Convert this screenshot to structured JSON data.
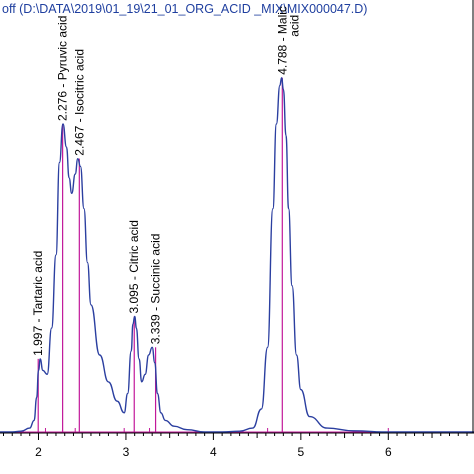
{
  "chart_data": {
    "type": "line",
    "title": "off (D:\\DATA\\2019\\01_19\\21_01_ORG_ACID _MIX\\MIX000047.D)",
    "xlabel": "",
    "ylabel": "",
    "xlim": [
      1.56,
      6.98
    ],
    "ylim": [
      0,
      1.0
    ],
    "x_ticks": [
      2,
      3,
      4,
      5,
      6
    ],
    "x_tick_labels": [
      "2",
      "3",
      "4",
      "5",
      "6"
    ],
    "colors": {
      "trace": "#2b3fa0",
      "baseline": "#c2189a",
      "frame": "#000000"
    },
    "series": [
      {
        "x": [
          1.56,
          1.7,
          1.8,
          1.9,
          1.95,
          1.98,
          2.0,
          2.02,
          2.05,
          2.1,
          2.15,
          2.2,
          2.24,
          2.28,
          2.32,
          2.35,
          2.38,
          2.42,
          2.45,
          2.48,
          2.52,
          2.56,
          2.6,
          2.7,
          2.8,
          2.9,
          2.98,
          3.02,
          3.06,
          3.08,
          3.1,
          3.12,
          3.15,
          3.18,
          3.22,
          3.26,
          3.3,
          3.33,
          3.36,
          3.4,
          3.45,
          3.55,
          3.7,
          3.9,
          4.1,
          4.3,
          4.45,
          4.55,
          4.62,
          4.68,
          4.72,
          4.76,
          4.78,
          4.8,
          4.83,
          4.86,
          4.9,
          4.95,
          5.0,
          5.1,
          5.3,
          5.6,
          6.0,
          6.4,
          6.98
        ],
        "y": [
          0.0,
          0.0,
          0.002,
          0.01,
          0.03,
          0.09,
          0.16,
          0.19,
          0.16,
          0.15,
          0.27,
          0.46,
          0.7,
          0.8,
          0.74,
          0.66,
          0.62,
          0.67,
          0.71,
          0.69,
          0.58,
          0.44,
          0.33,
          0.2,
          0.13,
          0.08,
          0.05,
          0.1,
          0.21,
          0.28,
          0.3,
          0.27,
          0.19,
          0.13,
          0.15,
          0.2,
          0.22,
          0.18,
          0.1,
          0.05,
          0.03,
          0.015,
          0.006,
          0.0,
          0.0,
          0.002,
          0.01,
          0.06,
          0.22,
          0.58,
          0.8,
          0.9,
          0.92,
          0.89,
          0.77,
          0.58,
          0.38,
          0.2,
          0.11,
          0.04,
          0.01,
          0.003,
          0.0,
          0.0,
          0.0
        ]
      }
    ],
    "peaks": [
      {
        "rt": 1.997,
        "label": "1.997 -  Tartaric acid",
        "y": 0.19
      },
      {
        "rt": 2.276,
        "label": "2.276 - Pyruvic acid",
        "y": 0.8
      },
      {
        "rt": 2.467,
        "label": "2.467 - Isocitric acid",
        "y": 0.71
      },
      {
        "rt": 3.095,
        "label": "3.095 -  Citric acid",
        "y": 0.3
      },
      {
        "rt": 3.339,
        "label": "3.339 - Succinic acid",
        "y": 0.22
      },
      {
        "rt": 4.788,
        "label": "4.788 - Malic",
        "label2": "acid",
        "y": 0.92
      }
    ],
    "integration_marks": [
      2.08,
      2.42,
      2.98,
      3.27,
      4.62,
      6.0
    ]
  }
}
